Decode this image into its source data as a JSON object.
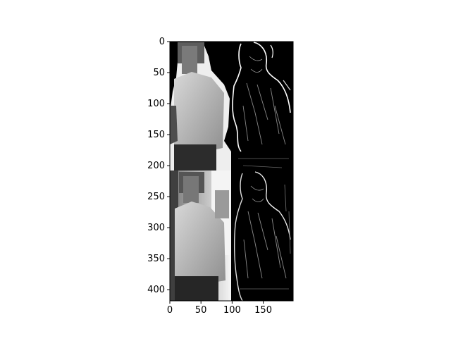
{
  "chart_data": {
    "type": "image",
    "title": "",
    "xlabel": "",
    "ylabel": "",
    "xlim": [
      0,
      198
    ],
    "ylim": [
      418,
      0
    ],
    "x_ticks": [
      0,
      50,
      100,
      150
    ],
    "y_ticks": [
      0,
      50,
      100,
      150,
      200,
      250,
      300,
      350,
      400
    ],
    "panels": [
      {
        "name": "top-left",
        "content": "grayscale person, masked background",
        "x_range": [
          0,
          99
        ],
        "y_range": [
          0,
          209
        ]
      },
      {
        "name": "top-right",
        "content": "edge map, masked",
        "x_range": [
          99,
          198
        ],
        "y_range": [
          0,
          209
        ]
      },
      {
        "name": "bottom-left",
        "content": "grayscale person, full background",
        "x_range": [
          0,
          99
        ],
        "y_range": [
          209,
          418
        ]
      },
      {
        "name": "bottom-right",
        "content": "edge map, full",
        "x_range": [
          99,
          198
        ],
        "y_range": [
          209,
          418
        ]
      }
    ],
    "colormap": "gray",
    "grid": false
  },
  "colors": {
    "background": "#ffffff",
    "axis": "#000000",
    "image_dark": "#000000",
    "image_light": "#f2f2f2"
  }
}
